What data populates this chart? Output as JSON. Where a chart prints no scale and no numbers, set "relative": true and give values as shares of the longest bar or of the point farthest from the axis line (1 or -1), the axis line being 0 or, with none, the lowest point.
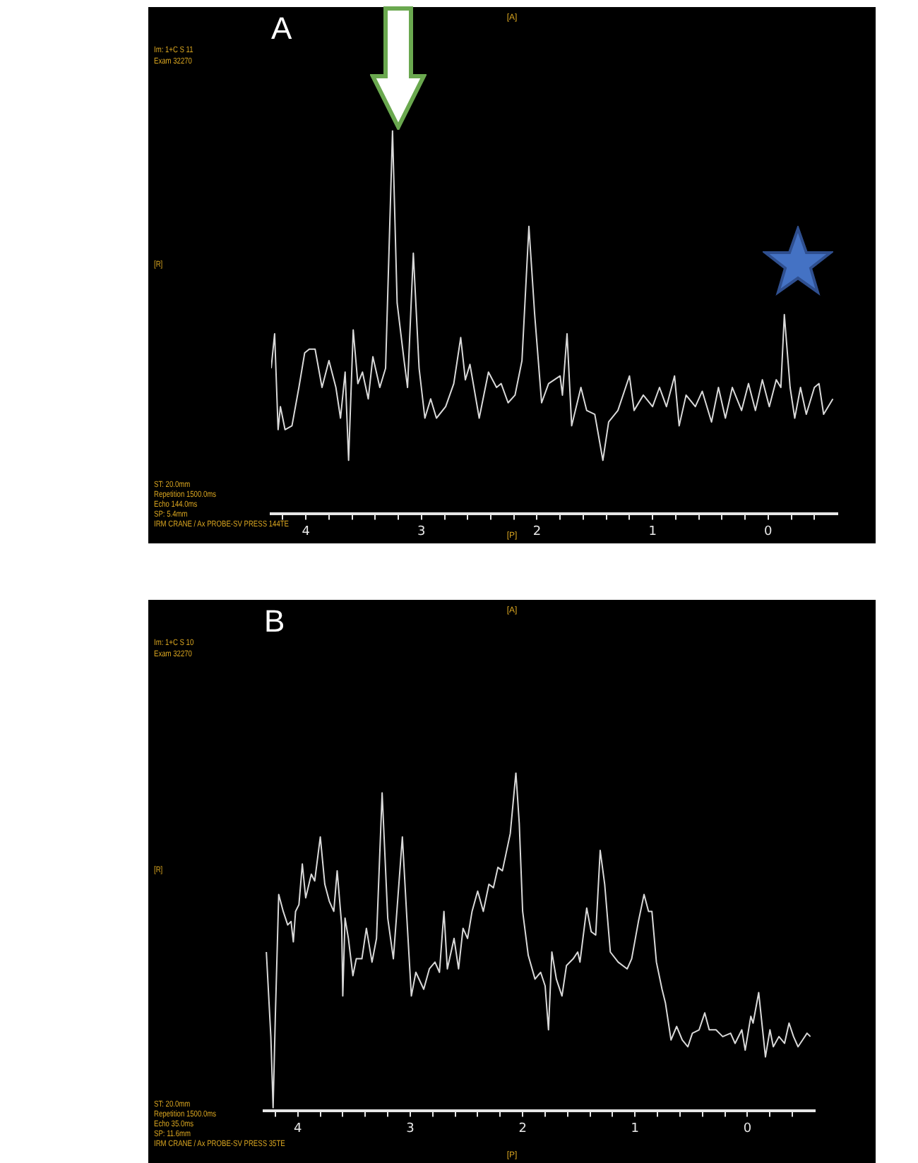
{
  "chart_data": [
    {
      "type": "line",
      "title": "A",
      "relative": true,
      "tick_labels": "x",
      "xlim": [
        4.3,
        -0.6
      ],
      "xticks": [
        {
          "value": 4.2,
          "label": null
        },
        4,
        {
          "value": 3.8,
          "label": null
        },
        {
          "value": 3.6,
          "label": null
        },
        {
          "value": 3.4,
          "label": null
        },
        {
          "value": 3.2,
          "label": null
        },
        3,
        {
          "value": 2.8,
          "label": null
        },
        {
          "value": 2.6,
          "label": null
        },
        {
          "value": 2.4,
          "label": null
        },
        {
          "value": 2.2,
          "label": null
        },
        2,
        {
          "value": 1.8,
          "label": null
        },
        {
          "value": 1.6,
          "label": null
        },
        {
          "value": 1.4,
          "label": null
        },
        {
          "value": 1.2,
          "label": null
        },
        1,
        {
          "value": 0.8,
          "label": null
        },
        {
          "value": 0.6,
          "label": null
        },
        {
          "value": 0.4,
          "label": null
        },
        {
          "value": 0.2,
          "label": null
        },
        0,
        {
          "value": -0.2,
          "label": null
        },
        {
          "value": -0.4,
          "label": null
        }
      ],
      "annotations": [
        "Im: 1+C S 11",
        "Exam 32270",
        "[A]",
        "[R]",
        "ST: 20.0mm",
        "Repetition 1500.0ms",
        "Echo 144.0ms",
        "SP: 5.4mm",
        "IRM CRANE / Ax PROBE-SV PRESS 144TE",
        "[P]"
      ],
      "x": [
        4.3,
        4.27,
        4.24,
        4.22,
        4.18,
        4.12,
        4.06,
        4.01,
        3.97,
        3.92,
        3.86,
        3.8,
        3.74,
        3.7,
        3.66,
        3.63,
        3.59,
        3.55,
        3.51,
        3.46,
        3.42,
        3.36,
        3.31,
        3.25,
        3.21,
        3.15,
        3.12,
        3.07,
        3.02,
        2.97,
        2.92,
        2.87,
        2.79,
        2.72,
        2.66,
        2.62,
        2.58,
        2.5,
        2.42,
        2.35,
        2.31,
        2.25,
        2.19,
        2.13,
        2.07,
        2.02,
        1.96,
        1.9,
        1.8,
        1.78,
        1.74,
        1.7,
        1.62,
        1.57,
        1.5,
        1.43,
        1.38,
        1.3,
        1.2,
        1.16,
        1.08,
        1.0,
        0.94,
        0.88,
        0.81,
        0.77,
        0.71,
        0.63,
        0.57,
        0.49,
        0.43,
        0.37,
        0.31,
        0.23,
        0.17,
        0.11,
        0.05,
        -0.01,
        -0.07,
        -0.11,
        -0.14,
        -0.19,
        -0.23,
        -0.28,
        -0.33,
        -0.4,
        -0.44,
        -0.48,
        -0.56
      ],
      "series": [
        {
          "color": "#d9d9d9",
          "values": [
            0.38,
            0.47,
            0.22,
            0.28,
            0.22,
            0.23,
            0.33,
            0.42,
            0.43,
            0.43,
            0.33,
            0.4,
            0.33,
            0.25,
            0.37,
            0.14,
            0.48,
            0.34,
            0.37,
            0.3,
            0.41,
            0.33,
            0.38,
            1,
            0.55,
            0.4,
            0.33,
            0.68,
            0.38,
            0.25,
            0.3,
            0.25,
            0.28,
            0.34,
            0.46,
            0.35,
            0.39,
            0.25,
            0.37,
            0.33,
            0.34,
            0.29,
            0.31,
            0.4,
            0.75,
            0.52,
            0.29,
            0.34,
            0.36,
            0.31,
            0.47,
            0.23,
            0.33,
            0.27,
            0.26,
            0.14,
            0.24,
            0.27,
            0.36,
            0.27,
            0.31,
            0.28,
            0.33,
            0.28,
            0.36,
            0.23,
            0.31,
            0.28,
            0.32,
            0.24,
            0.33,
            0.25,
            0.33,
            0.27,
            0.34,
            0.27,
            0.35,
            0.28,
            0.35,
            0.33,
            0.52,
            0.33,
            0.25,
            0.33,
            0.26,
            0.33,
            0.34,
            0.26,
            0.3
          ]
        }
      ]
    },
    {
      "type": "line",
      "title": "B",
      "relative": true,
      "tick_labels": "x",
      "xlim": [
        4.3,
        -0.6
      ],
      "xticks": [
        {
          "value": 4.2,
          "label": null
        },
        4,
        {
          "value": 3.8,
          "label": null
        },
        {
          "value": 3.6,
          "label": null
        },
        {
          "value": 3.4,
          "label": null
        },
        {
          "value": 3.2,
          "label": null
        },
        3,
        {
          "value": 2.8,
          "label": null
        },
        {
          "value": 2.6,
          "label": null
        },
        {
          "value": 2.4,
          "label": null
        },
        {
          "value": 2.2,
          "label": null
        },
        2,
        {
          "value": 1.8,
          "label": null
        },
        {
          "value": 1.6,
          "label": null
        },
        {
          "value": 1.4,
          "label": null
        },
        {
          "value": 1.2,
          "label": null
        },
        1,
        {
          "value": 0.8,
          "label": null
        },
        {
          "value": 0.6,
          "label": null
        },
        {
          "value": 0.4,
          "label": null
        },
        {
          "value": 0.2,
          "label": null
        },
        0,
        {
          "value": -0.2,
          "label": null
        },
        {
          "value": -0.4,
          "label": null
        }
      ],
      "annotations": [
        "Im: 1+C S 10",
        "Exam 32270",
        "[A]",
        "[R]",
        "ST: 20.0mm",
        "Repetition 1500.0ms",
        "Echo 35.0ms",
        "SP: 11.6mm",
        "IRM CRANE / Ax PROBE-SV PRESS 35TE",
        "[P]"
      ],
      "x": [
        4.28,
        4.24,
        4.22,
        4.2,
        4.17,
        4.13,
        4.09,
        4.06,
        4.04,
        4.02,
        3.99,
        3.96,
        3.93,
        3.88,
        3.85,
        3.8,
        3.76,
        3.72,
        3.68,
        3.65,
        3.61,
        3.6,
        3.58,
        3.55,
        3.51,
        3.48,
        3.43,
        3.39,
        3.34,
        3.3,
        3.25,
        3.2,
        3.15,
        3.07,
        3.03,
        2.99,
        2.95,
        2.88,
        2.83,
        2.78,
        2.74,
        2.7,
        2.67,
        2.61,
        2.57,
        2.53,
        2.49,
        2.45,
        2.4,
        2.35,
        2.3,
        2.26,
        2.22,
        2.18,
        2.11,
        2.06,
        2.03,
        2.0,
        1.95,
        1.89,
        1.84,
        1.8,
        1.77,
        1.74,
        1.7,
        1.65,
        1.61,
        1.55,
        1.51,
        1.49,
        1.43,
        1.39,
        1.35,
        1.31,
        1.27,
        1.22,
        1.15,
        1.07,
        1.03,
        0.97,
        0.92,
        0.88,
        0.85,
        0.81,
        0.76,
        0.73,
        0.68,
        0.63,
        0.58,
        0.53,
        0.49,
        0.43,
        0.38,
        0.34,
        0.28,
        0.22,
        0.15,
        0.11,
        0.05,
        0.02,
        -0.03,
        -0.05,
        -0.1,
        -0.16,
        -0.2,
        -0.23,
        -0.28,
        -0.33,
        -0.37,
        -0.41,
        -0.45,
        -0.49,
        -0.53,
        -0.56
      ],
      "series": [
        {
          "color": "#d9d9d9",
          "values": [
            0.47,
            0.22,
            0.01,
            0.28,
            0.64,
            0.59,
            0.55,
            0.56,
            0.5,
            0.59,
            0.61,
            0.73,
            0.63,
            0.7,
            0.68,
            0.81,
            0.67,
            0.62,
            0.59,
            0.71,
            0.55,
            0.34,
            0.57,
            0.51,
            0.4,
            0.45,
            0.45,
            0.54,
            0.44,
            0.51,
            0.94,
            0.57,
            0.45,
            0.81,
            0.57,
            0.34,
            0.41,
            0.36,
            0.42,
            0.44,
            0.41,
            0.59,
            0.42,
            0.51,
            0.42,
            0.54,
            0.51,
            0.59,
            0.65,
            0.59,
            0.67,
            0.66,
            0.72,
            0.71,
            0.82,
            1,
            0.85,
            0.59,
            0.46,
            0.39,
            0.41,
            0.37,
            0.24,
            0.47,
            0.39,
            0.34,
            0.43,
            0.45,
            0.47,
            0.44,
            0.6,
            0.53,
            0.52,
            0.77,
            0.67,
            0.47,
            0.44,
            0.42,
            0.45,
            0.56,
            0.64,
            0.59,
            0.59,
            0.44,
            0.36,
            0.32,
            0.21,
            0.25,
            0.21,
            0.19,
            0.23,
            0.24,
            0.29,
            0.24,
            0.24,
            0.22,
            0.23,
            0.2,
            0.24,
            0.18,
            0.28,
            0.26,
            0.35,
            0.16,
            0.24,
            0.19,
            0.22,
            0.2,
            0.26,
            0.22,
            0.19,
            0.21,
            0.23,
            0.22
          ]
        }
      ]
    }
  ]
}
